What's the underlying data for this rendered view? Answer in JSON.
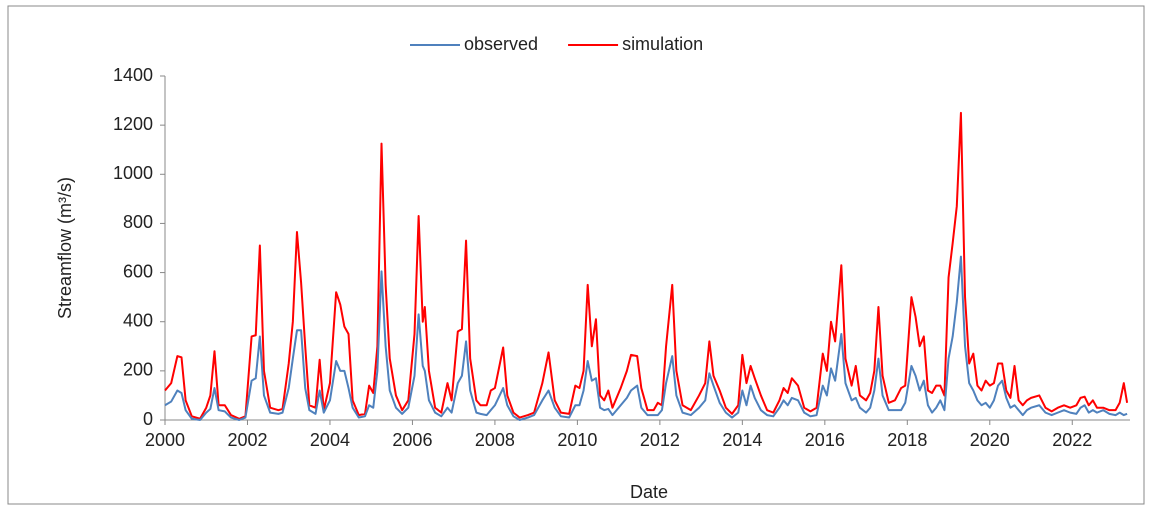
{
  "chart_data": {
    "type": "line",
    "xlabel": "Date",
    "ylabel": "Streamflow (m³/s)",
    "xlim": [
      2000,
      2023.4
    ],
    "xticks": [
      2000,
      2002,
      2004,
      2006,
      2008,
      2010,
      2012,
      2014,
      2016,
      2018,
      2020,
      2022
    ],
    "ylim": [
      0,
      1400
    ],
    "yticks": [
      0,
      200,
      400,
      600,
      800,
      1000,
      1200,
      1400
    ],
    "legend": "top",
    "x": [
      2000,
      2000.15,
      2000.3,
      2000.4,
      2000.5,
      2000.65,
      2000.85,
      2001,
      2001.1,
      2001.2,
      2001.3,
      2001.45,
      2001.6,
      2001.8,
      2001.95,
      2002.1,
      2002.2,
      2002.3,
      2002.4,
      2002.55,
      2002.75,
      2002.85,
      2003,
      2003.1,
      2003.2,
      2003.3,
      2003.4,
      2003.5,
      2003.65,
      2003.75,
      2003.85,
      2004,
      2004.15,
      2004.25,
      2004.35,
      2004.45,
      2004.55,
      2004.7,
      2004.85,
      2004.95,
      2005.05,
      2005.15,
      2005.25,
      2005.35,
      2005.45,
      2005.6,
      2005.75,
      2005.9,
      2006.05,
      2006.15,
      2006.25,
      2006.3,
      2006.4,
      2006.55,
      2006.7,
      2006.85,
      2006.95,
      2007.1,
      2007.2,
      2007.3,
      2007.4,
      2007.55,
      2007.65,
      2007.8,
      2007.9,
      2008,
      2008.2,
      2008.3,
      2008.45,
      2008.6,
      2008.8,
      2008.95,
      2009.15,
      2009.3,
      2009.45,
      2009.6,
      2009.8,
      2009.95,
      2010.05,
      2010.15,
      2010.25,
      2010.35,
      2010.45,
      2010.55,
      2010.65,
      2010.75,
      2010.85,
      2011.05,
      2011.2,
      2011.3,
      2011.45,
      2011.55,
      2011.7,
      2011.85,
      2011.95,
      2012.05,
      2012.15,
      2012.3,
      2012.4,
      2012.55,
      2012.75,
      2012.95,
      2013.1,
      2013.2,
      2013.3,
      2013.45,
      2013.6,
      2013.75,
      2013.9,
      2014,
      2014.1,
      2014.2,
      2014.3,
      2014.45,
      2014.6,
      2014.75,
      2014.9,
      2015,
      2015.1,
      2015.2,
      2015.35,
      2015.5,
      2015.65,
      2015.8,
      2015.95,
      2016.05,
      2016.15,
      2016.25,
      2016.4,
      2016.5,
      2016.65,
      2016.75,
      2016.85,
      2017,
      2017.1,
      2017.2,
      2017.3,
      2017.4,
      2017.55,
      2017.7,
      2017.85,
      2017.95,
      2018.1,
      2018.2,
      2018.3,
      2018.4,
      2018.5,
      2018.6,
      2018.7,
      2018.8,
      2018.9,
      2019,
      2019.1,
      2019.2,
      2019.3,
      2019.4,
      2019.5,
      2019.6,
      2019.7,
      2019.8,
      2019.9,
      2020,
      2020.1,
      2020.2,
      2020.3,
      2020.4,
      2020.5,
      2020.6,
      2020.7,
      2020.8,
      2020.9,
      2021,
      2021.2,
      2021.35,
      2021.5,
      2021.65,
      2021.8,
      2021.95,
      2022.1,
      2022.2,
      2022.3,
      2022.4,
      2022.5,
      2022.6,
      2022.75,
      2022.9,
      2023.05,
      2023.15,
      2023.25,
      2023.33
    ],
    "series": [
      {
        "name": "observed",
        "color": "#4f81bd",
        "values": [
          60,
          75,
          120,
          110,
          40,
          5,
          0,
          30,
          45,
          130,
          40,
          35,
          10,
          0,
          10,
          160,
          170,
          340,
          100,
          30,
          25,
          30,
          130,
          250,
          365,
          365,
          130,
          40,
          25,
          120,
          30,
          80,
          240,
          200,
          200,
          130,
          50,
          10,
          15,
          60,
          50,
          200,
          605,
          300,
          120,
          50,
          25,
          50,
          180,
          430,
          220,
          200,
          80,
          30,
          15,
          50,
          30,
          150,
          180,
          320,
          120,
          30,
          25,
          20,
          40,
          60,
          130,
          60,
          15,
          0,
          10,
          20,
          80,
          120,
          50,
          15,
          10,
          60,
          60,
          120,
          240,
          160,
          170,
          50,
          40,
          45,
          20,
          60,
          90,
          120,
          140,
          50,
          20,
          20,
          20,
          40,
          150,
          260,
          100,
          30,
          20,
          50,
          80,
          190,
          140,
          70,
          30,
          10,
          30,
          120,
          60,
          140,
          90,
          40,
          20,
          15,
          50,
          80,
          60,
          90,
          80,
          30,
          15,
          20,
          140,
          100,
          210,
          160,
          350,
          150,
          80,
          90,
          50,
          30,
          50,
          120,
          250,
          100,
          40,
          40,
          40,
          70,
          220,
          180,
          120,
          160,
          60,
          30,
          50,
          80,
          40,
          250,
          340,
          480,
          665,
          300,
          150,
          120,
          80,
          60,
          70,
          50,
          80,
          140,
          160,
          90,
          50,
          60,
          40,
          20,
          40,
          50,
          60,
          30,
          20,
          30,
          40,
          30,
          25,
          50,
          60,
          30,
          40,
          30,
          40,
          25,
          20,
          30,
          20,
          25
        ]
      },
      {
        "name": "simulation",
        "color": "#ff0000",
        "values": [
          120,
          150,
          260,
          255,
          80,
          15,
          5,
          50,
          100,
          280,
          60,
          60,
          20,
          5,
          15,
          340,
          345,
          710,
          200,
          50,
          40,
          45,
          230,
          400,
          765,
          560,
          300,
          60,
          50,
          245,
          40,
          150,
          520,
          470,
          380,
          350,
          80,
          20,
          25,
          140,
          110,
          300,
          1125,
          550,
          250,
          100,
          40,
          80,
          350,
          830,
          400,
          460,
          200,
          50,
          30,
          150,
          80,
          360,
          370,
          730,
          250,
          80,
          60,
          60,
          120,
          130,
          295,
          100,
          30,
          10,
          20,
          30,
          150,
          275,
          80,
          30,
          25,
          140,
          130,
          200,
          550,
          300,
          410,
          100,
          80,
          120,
          50,
          130,
          200,
          265,
          260,
          130,
          40,
          40,
          70,
          60,
          300,
          550,
          200,
          60,
          40,
          100,
          150,
          320,
          180,
          120,
          50,
          25,
          60,
          265,
          150,
          220,
          170,
          100,
          40,
          30,
          80,
          130,
          110,
          170,
          140,
          50,
          35,
          50,
          270,
          200,
          400,
          320,
          630,
          250,
          140,
          220,
          100,
          80,
          110,
          200,
          460,
          180,
          70,
          80,
          130,
          140,
          500,
          420,
          300,
          340,
          120,
          110,
          140,
          140,
          100,
          580,
          720,
          870,
          1250,
          500,
          230,
          270,
          140,
          120,
          160,
          140,
          150,
          230,
          230,
          120,
          90,
          220,
          80,
          60,
          80,
          90,
          100,
          50,
          35,
          50,
          60,
          50,
          60,
          90,
          95,
          60,
          80,
          50,
          50,
          40,
          40,
          70,
          150,
          70
        ]
      }
    ]
  }
}
